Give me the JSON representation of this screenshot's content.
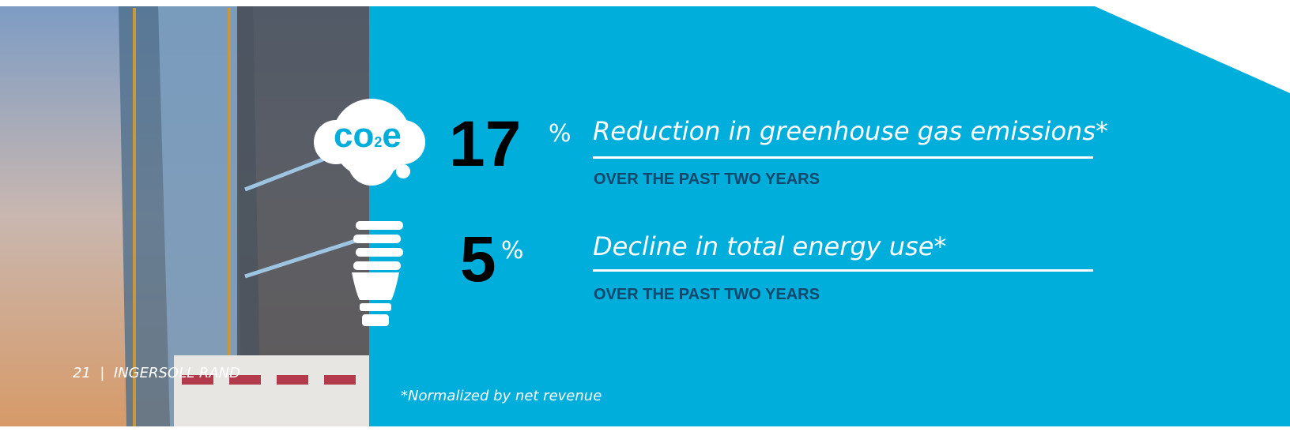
{
  "footer": {
    "page": "21",
    "separator": "|",
    "company": "INGERSOLL RAND"
  },
  "icon": {
    "co": "co",
    "sub": "2",
    "e": "e"
  },
  "stats": [
    {
      "value": "17",
      "unit": "%",
      "label": "Reduction in greenhouse gas emissions*",
      "sub": "OVER THE PAST TWO YEARS"
    },
    {
      "value": "5",
      "unit": "%",
      "label": "Decline in total energy use*",
      "sub": "OVER THE PAST TWO YEARS"
    }
  ],
  "footnote": "*Normalized by net revenue"
}
